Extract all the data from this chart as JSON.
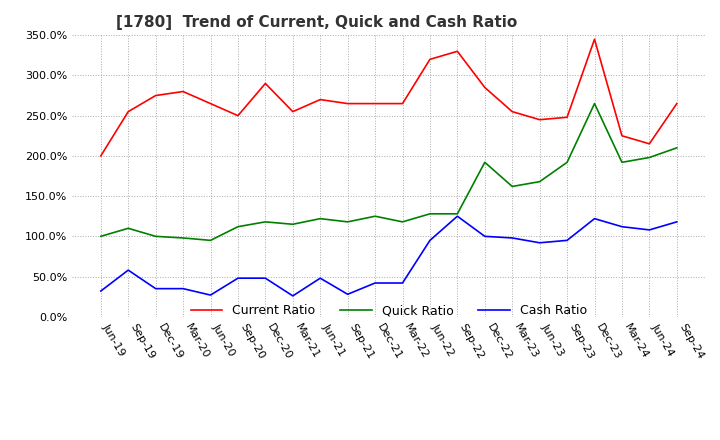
{
  "title": "[1780]  Trend of Current, Quick and Cash Ratio",
  "x_labels": [
    "Jun-19",
    "Sep-19",
    "Dec-19",
    "Mar-20",
    "Jun-20",
    "Sep-20",
    "Dec-20",
    "Mar-21",
    "Jun-21",
    "Sep-21",
    "Dec-21",
    "Mar-22",
    "Jun-22",
    "Sep-22",
    "Dec-22",
    "Mar-23",
    "Jun-23",
    "Sep-23",
    "Dec-23",
    "Mar-24",
    "Jun-24",
    "Sep-24"
  ],
  "current_ratio": [
    200.0,
    255.0,
    275.0,
    280.0,
    265.0,
    250.0,
    290.0,
    255.0,
    270.0,
    265.0,
    265.0,
    265.0,
    320.0,
    330.0,
    285.0,
    255.0,
    245.0,
    248.0,
    345.0,
    225.0,
    215.0,
    265.0
  ],
  "quick_ratio": [
    100.0,
    110.0,
    100.0,
    98.0,
    95.0,
    112.0,
    118.0,
    115.0,
    122.0,
    118.0,
    125.0,
    118.0,
    128.0,
    128.0,
    192.0,
    162.0,
    168.0,
    192.0,
    265.0,
    192.0,
    198.0,
    210.0
  ],
  "cash_ratio": [
    32.0,
    58.0,
    35.0,
    35.0,
    27.0,
    48.0,
    48.0,
    26.0,
    48.0,
    28.0,
    42.0,
    42.0,
    95.0,
    125.0,
    100.0,
    98.0,
    92.0,
    95.0,
    122.0,
    112.0,
    108.0,
    118.0
  ],
  "current_color": "#ff0000",
  "quick_color": "#008000",
  "cash_color": "#0000ff",
  "ylim": [
    0.0,
    350.0
  ],
  "yticks": [
    0.0,
    50.0,
    100.0,
    150.0,
    200.0,
    250.0,
    300.0,
    350.0
  ],
  "background_color": "#ffffff",
  "grid_color": "#aaaaaa",
  "title_fontsize": 11,
  "tick_fontsize": 8
}
